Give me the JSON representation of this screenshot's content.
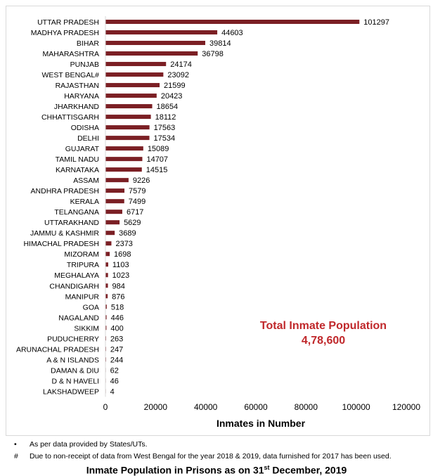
{
  "chart_data": {
    "type": "bar",
    "orientation": "horizontal",
    "categories": [
      "UTTAR PRADESH",
      "MADHYA PRADESH",
      "BIHAR",
      "MAHARASHTRA",
      "PUNJAB",
      "WEST BENGAL#",
      "RAJASTHAN",
      "HARYANA",
      "JHARKHAND",
      "CHHATTISGARH",
      "ODISHA",
      "DELHI",
      "GUJARAT",
      "TAMIL NADU",
      "KARNATAKA",
      "ASSAM",
      "ANDHRA PRADESH",
      "KERALA",
      "TELANGANA",
      "UTTARAKHAND",
      "JAMMU & KASHMIR",
      "HIMACHAL PRADESH",
      "MIZORAM",
      "TRIPURA",
      "MEGHALAYA",
      "CHANDIGARH",
      "MANIPUR",
      "GOA",
      "NAGALAND",
      "SIKKIM",
      "PUDUCHERRY",
      "ARUNACHAL PRADESH",
      "A & N ISLANDS",
      "DAMAN & DIU",
      "D & N HAVELI",
      "LAKSHADWEEP"
    ],
    "values": [
      101297,
      44603,
      39814,
      36798,
      24174,
      23092,
      21599,
      20423,
      18654,
      18112,
      17563,
      17534,
      15089,
      14707,
      14515,
      9226,
      7579,
      7499,
      6717,
      5629,
      3689,
      2373,
      1698,
      1103,
      1023,
      984,
      876,
      518,
      446,
      400,
      263,
      247,
      244,
      62,
      46,
      4
    ],
    "xlabel": "Inmates in Number",
    "ylabel": "",
    "xlim": [
      0,
      120000
    ],
    "xticks": [
      0,
      20000,
      40000,
      60000,
      80000,
      100000,
      120000
    ],
    "bar_color": "#7b1f24",
    "annotation": {
      "line1": "Total Inmate Population",
      "line2": "4,78,600",
      "color": "#c0282b"
    }
  },
  "footnotes": [
    {
      "mark": "•",
      "text": "As per data provided by States/UTs."
    },
    {
      "mark": "#",
      "text": "Due to non-receipt of data from West Bengal for the year 2018 & 2019, data furnished for 2017 has been used."
    }
  ],
  "caption": {
    "prefix": "Inmate Population in Prisons as on 31",
    "superscript": "st",
    "suffix": " December, 2019"
  }
}
